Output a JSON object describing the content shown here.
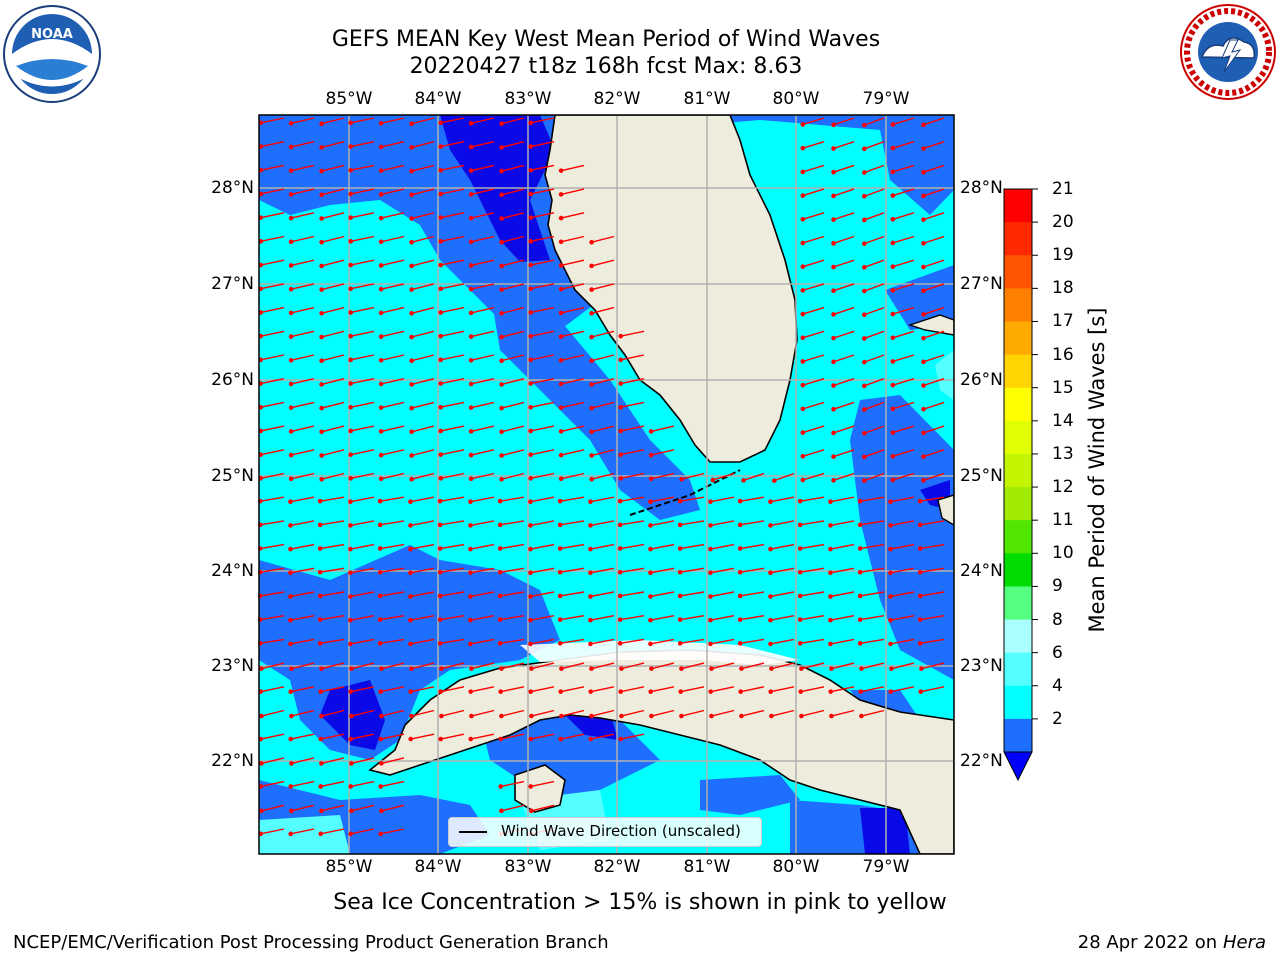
{
  "header": {
    "title_line1": "GEFS MEAN Key West Mean Period of Wind Waves",
    "title_line2": "20220427 t18z 168h fcst   Max: 8.63"
  },
  "map": {
    "x_ticks": [
      "85°W",
      "84°W",
      "83°W",
      "82°W",
      "81°W",
      "80°W",
      "79°W"
    ],
    "y_ticks": [
      "28°N",
      "27°N",
      "26°N",
      "25°N",
      "24°N",
      "23°N",
      "22°N"
    ],
    "legend_label": "Wind Wave Direction (unscaled)",
    "colors": {
      "land": "#eeecdc",
      "ocean_bg": "#00ffff",
      "band_2_4": "#1f6fff",
      "band_lt2": "#0a0ae6",
      "band_6_8": "#55ffff",
      "arrows": "#ff0000",
      "grid": "#b0b0b0"
    }
  },
  "colorbar": {
    "label": "Mean Period of Wind Waves [s]",
    "ticks": [
      "21",
      "20",
      "19",
      "18",
      "17",
      "16",
      "15",
      "14",
      "13",
      "12",
      "11",
      "10",
      "9",
      "8",
      "6",
      "4",
      "2"
    ],
    "colors": [
      "#ff0000",
      "#ff2a00",
      "#ff5500",
      "#ff7f00",
      "#ffaa00",
      "#ffd400",
      "#ffff00",
      "#e1ff00",
      "#c3f500",
      "#a0eb00",
      "#50e600",
      "#00dc00",
      "#55ff7f",
      "#aaffff",
      "#55ffff",
      "#00ffff",
      "#1f6fff"
    ],
    "extend_color": "#0000ff"
  },
  "notes": {
    "ice": "Sea Ice Concentration > 15% is shown in pink to yellow"
  },
  "footer": {
    "left": "NCEP/EMC/Verification Post Processing Product Generation Branch",
    "right_date": "28 Apr 2022 on",
    "right_host": "Hera"
  },
  "logos": {
    "noaa": "NOAA",
    "nws": "NATIONAL WEATHER SERVICE"
  }
}
